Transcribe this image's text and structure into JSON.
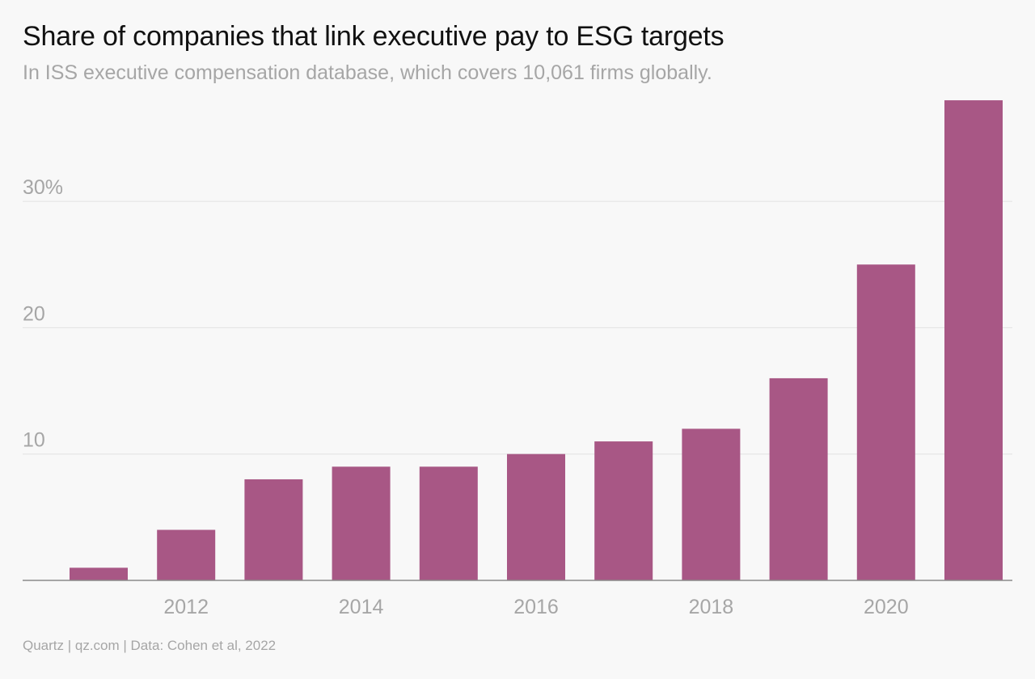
{
  "header": {
    "title": "Share of companies that link executive pay to ESG targets",
    "subtitle": "In ISS executive compensation database, which covers 10,061 firms globally."
  },
  "footer": {
    "credit": "Quartz | qz.com | Data: Cohen et al, 2022"
  },
  "chart_data": {
    "type": "bar",
    "categories": [
      "2011",
      "2012",
      "2013",
      "2014",
      "2015",
      "2016",
      "2017",
      "2018",
      "2019",
      "2020",
      "2021"
    ],
    "values": [
      1,
      4,
      8,
      9,
      9,
      10,
      11,
      12,
      16,
      25,
      38
    ],
    "x_tick_labels": [
      "2012",
      "2014",
      "2016",
      "2018",
      "2020"
    ],
    "y_ticks": [
      {
        "value": 10,
        "label": "10"
      },
      {
        "value": 20,
        "label": "20"
      },
      {
        "value": 30,
        "label": "30%"
      }
    ],
    "ylim": [
      0,
      38
    ],
    "grid": true,
    "bar_color": "#a85785",
    "title": "Share of companies that link executive pay to ESG targets",
    "xlabel": "",
    "ylabel": ""
  }
}
